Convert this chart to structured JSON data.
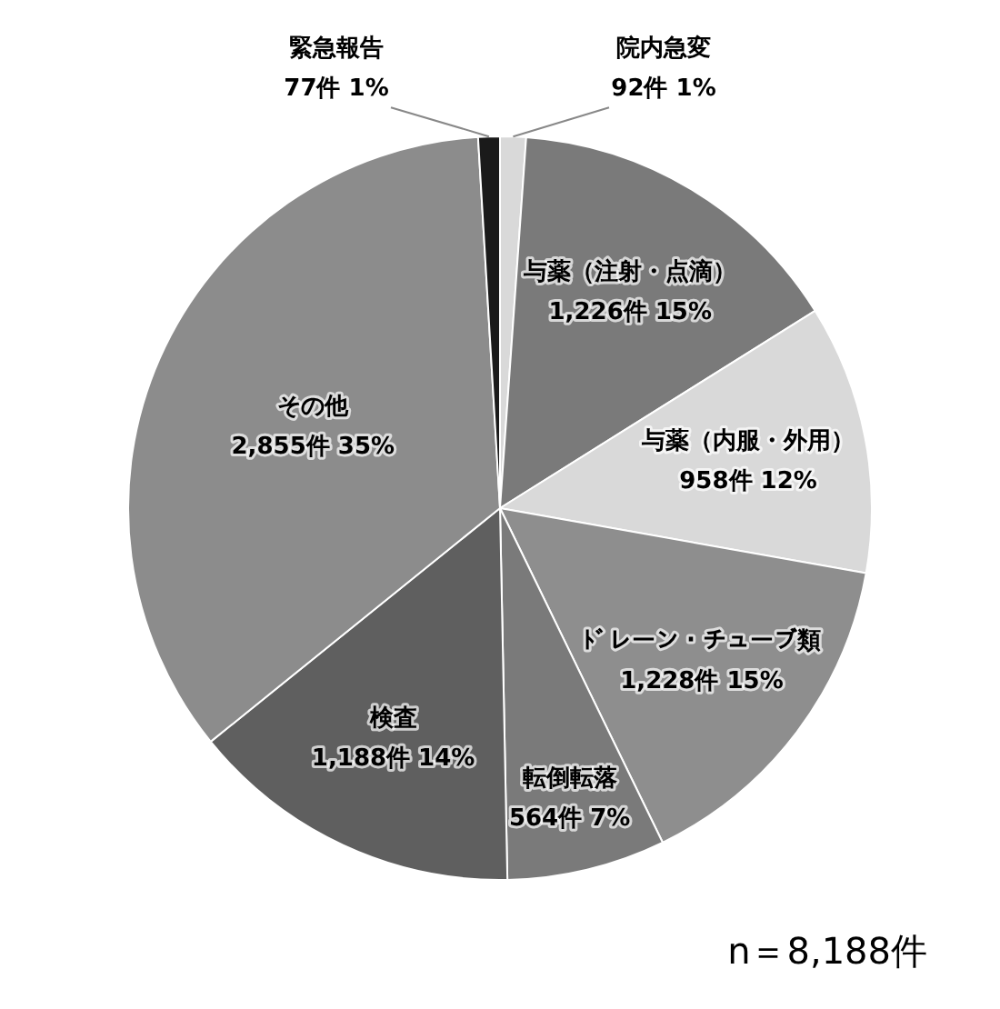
{
  "chart_data": {
    "type": "pie",
    "categories": [
      "院内急変",
      "与薬（注射・点滴）",
      "与薬（内服・外用）",
      "ﾄﾞレーン・チューブ類",
      "転倒転落",
      "検査",
      "その他",
      "緊急報告"
    ],
    "values": [
      92,
      1226,
      958,
      1228,
      564,
      1188,
      2855,
      77
    ],
    "value_labels": [
      "92件 1%",
      "1,226件 15%",
      "958件 12%",
      "1,228件 15%",
      "564件 7%",
      "1,188件 14%",
      "2,855件 35%",
      "77件 1%"
    ],
    "colors": [
      "#d9d9d9",
      "#7a7a7a",
      "#d9d9d9",
      "#8e8e8e",
      "#7a7a7a",
      "#5f5f5f",
      "#8c8c8c",
      "#1a1a1a"
    ],
    "legend": false,
    "annotations": [
      "n＝8,188件"
    ]
  }
}
